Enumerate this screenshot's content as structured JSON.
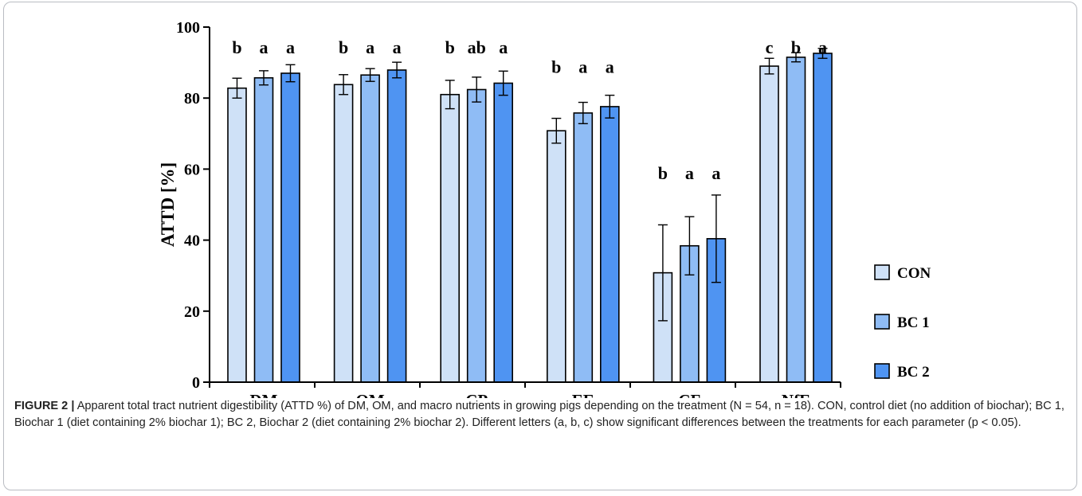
{
  "chart_data": {
    "type": "bar",
    "categories": [
      "DM",
      "OM",
      "CP",
      "EE",
      "CF",
      "NfE"
    ],
    "series": [
      {
        "name": "CON",
        "color": "#cfe1f7",
        "values": [
          82.8,
          83.8,
          81.0,
          70.8,
          30.8,
          89.0
        ],
        "errors": [
          2.8,
          2.8,
          4.0,
          3.5,
          13.5,
          2.2
        ],
        "letters": [
          "b",
          "b",
          "b",
          "b",
          "b",
          "c"
        ]
      },
      {
        "name": "BC 1",
        "color": "#8fbcf5",
        "values": [
          85.7,
          86.5,
          82.4,
          75.8,
          38.4,
          91.5
        ],
        "errors": [
          2.0,
          1.8,
          3.5,
          3.0,
          8.2,
          1.3
        ],
        "letters": [
          "a",
          "a",
          "ab",
          "a",
          "a",
          "b"
        ]
      },
      {
        "name": "BC 2",
        "color": "#4f94f2",
        "values": [
          87.0,
          87.9,
          84.2,
          77.6,
          40.4,
          92.6
        ],
        "errors": [
          2.4,
          2.2,
          3.4,
          3.2,
          12.3,
          1.4
        ],
        "letters": [
          "a",
          "a",
          "a",
          "a",
          "a",
          "a"
        ]
      }
    ],
    "ylabel": "ATTD [%]",
    "xlabel": "",
    "ylim": [
      0,
      100
    ],
    "yticks": [
      0,
      20,
      40,
      60,
      80,
      100
    ],
    "legend_position": "right",
    "grid": false
  },
  "caption": {
    "label": "FIGURE 2 |",
    "text": "Apparent total tract nutrient digestibility (ATTD %) of DM, OM, and macro nutrients in growing pigs depending on the treatment (N = 54, n = 18). CON, control diet (no addition of biochar); BC 1, Biochar 1 (diet containing 2% biochar 1); BC 2, Biochar 2 (diet containing 2% biochar 2). Different letters (a, b, c) show significant differences between the treatments for each parameter (p < 0.05)."
  }
}
